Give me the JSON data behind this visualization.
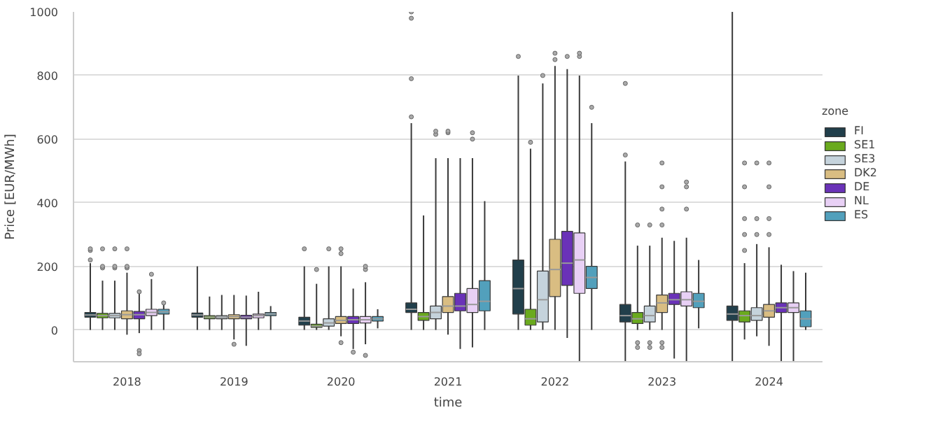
{
  "chart_data": {
    "type": "box",
    "xlabel": "time",
    "ylabel": "Price [EUR/MWh]",
    "legend_title": "zone",
    "legend": "right",
    "grid": "y",
    "categories": [
      "2018",
      "2019",
      "2020",
      "2021",
      "2022",
      "2023",
      "2024"
    ],
    "ylim": [
      -100,
      1000
    ],
    "yticks": [
      0,
      200,
      400,
      600,
      800,
      1000
    ],
    "series": [
      {
        "name": "FI",
        "color": "#213f4b",
        "boxes": [
          {
            "low": 0,
            "q1": 40,
            "median": 47,
            "q3": 55,
            "high": 210,
            "outliers": [
              220,
              250,
              255
            ]
          },
          {
            "low": 0,
            "q1": 40,
            "median": 47,
            "q3": 53,
            "high": 200
          },
          {
            "low": 0,
            "q1": 15,
            "median": 28,
            "q3": 40,
            "high": 200,
            "outliers": [
              255
            ]
          },
          {
            "low": 0,
            "q1": 55,
            "median": 65,
            "q3": 85,
            "high": 650,
            "outliers": [
              670,
              790,
              980,
              1000
            ]
          },
          {
            "low": 0,
            "q1": 50,
            "median": 130,
            "q3": 220,
            "high": 800,
            "outliers": [
              860
            ]
          },
          {
            "low": -100,
            "q1": 25,
            "median": 45,
            "q3": 80,
            "high": 530,
            "outliers": [
              550,
              775
            ]
          },
          {
            "low": -100,
            "q1": 30,
            "median": 50,
            "q3": 75,
            "high": 1000
          }
        ]
      },
      {
        "name": "SE1",
        "color": "#6aaa1e",
        "boxes": [
          {
            "low": 0,
            "q1": 38,
            "median": 45,
            "q3": 52,
            "high": 155,
            "outliers": [
              195,
              200,
              255
            ]
          },
          {
            "low": 0,
            "q1": 35,
            "median": 40,
            "q3": 45,
            "high": 105
          },
          {
            "low": 0,
            "q1": 8,
            "median": 12,
            "q3": 18,
            "high": 145,
            "outliers": [
              190
            ]
          },
          {
            "low": 0,
            "q1": 30,
            "median": 42,
            "q3": 55,
            "high": 360
          },
          {
            "low": 0,
            "q1": 15,
            "median": 35,
            "q3": 65,
            "high": 570,
            "outliers": [
              590
            ]
          },
          {
            "low": 0,
            "q1": 20,
            "median": 35,
            "q3": 55,
            "high": 265,
            "outliers": [
              330,
              -40,
              -55
            ]
          },
          {
            "low": -30,
            "q1": 25,
            "median": 45,
            "q3": 60,
            "high": 210,
            "outliers": [
              250,
              300,
              350,
              450,
              525
            ]
          }
        ]
      },
      {
        "name": "SE3",
        "color": "#c5d3dc",
        "boxes": [
          {
            "low": 0,
            "q1": 38,
            "median": 45,
            "q3": 52,
            "high": 155,
            "outliers": [
              195,
              200,
              255
            ]
          },
          {
            "low": 0,
            "q1": 35,
            "median": 40,
            "q3": 45,
            "high": 110
          },
          {
            "low": 0,
            "q1": 12,
            "median": 22,
            "q3": 35,
            "high": 200,
            "outliers": [
              255
            ]
          },
          {
            "low": 0,
            "q1": 35,
            "median": 55,
            "q3": 75,
            "high": 540,
            "outliers": [
              615,
              625
            ]
          },
          {
            "low": 0,
            "q1": 25,
            "median": 95,
            "q3": 185,
            "high": 775,
            "outliers": [
              800
            ]
          },
          {
            "low": 0,
            "q1": 25,
            "median": 45,
            "q3": 75,
            "high": 265,
            "outliers": [
              330,
              -40,
              -55
            ]
          },
          {
            "low": -20,
            "q1": 30,
            "median": 45,
            "q3": 70,
            "high": 270,
            "outliers": [
              300,
              350,
              525
            ]
          }
        ]
      },
      {
        "name": "DK2",
        "color": "#d9bd82",
        "boxes": [
          {
            "low": -15,
            "q1": 35,
            "median": 48,
            "q3": 60,
            "high": 180,
            "outliers": [
              195,
              200,
              255
            ]
          },
          {
            "low": -30,
            "q1": 35,
            "median": 42,
            "q3": 48,
            "high": 110,
            "outliers": [
              -45
            ]
          },
          {
            "low": -20,
            "q1": 20,
            "median": 30,
            "q3": 42,
            "high": 200,
            "outliers": [
              240,
              255,
              -40
            ]
          },
          {
            "low": -15,
            "q1": 55,
            "median": 75,
            "q3": 105,
            "high": 540,
            "outliers": [
              620,
              625
            ]
          },
          {
            "low": 0,
            "q1": 105,
            "median": 190,
            "q3": 285,
            "high": 830,
            "outliers": [
              850,
              870
            ]
          },
          {
            "low": 0,
            "q1": 55,
            "median": 85,
            "q3": 110,
            "high": 290,
            "outliers": [
              330,
              380,
              450,
              525,
              -40,
              -55
            ]
          },
          {
            "low": -50,
            "q1": 40,
            "median": 60,
            "q3": 80,
            "high": 260,
            "outliers": [
              300,
              350,
              450,
              525
            ]
          }
        ]
      },
      {
        "name": "DE",
        "color": "#6a32b8",
        "boxes": [
          {
            "low": -10,
            "q1": 35,
            "median": 48,
            "q3": 58,
            "high": 115,
            "outliers": [
              120,
              -65,
              -75
            ]
          },
          {
            "low": -50,
            "q1": 35,
            "median": 40,
            "q3": 46,
            "high": 108
          },
          {
            "low": -60,
            "q1": 20,
            "median": 32,
            "q3": 42,
            "high": 130,
            "outliers": [
              -70
            ]
          },
          {
            "low": -60,
            "q1": 60,
            "median": 75,
            "q3": 115,
            "high": 540
          },
          {
            "low": -25,
            "q1": 140,
            "median": 210,
            "q3": 310,
            "high": 820,
            "outliers": [
              860
            ]
          },
          {
            "low": -90,
            "q1": 80,
            "median": 95,
            "q3": 115,
            "high": 280
          },
          {
            "low": -100,
            "q1": 55,
            "median": 70,
            "q3": 85,
            "high": 205
          }
        ]
      },
      {
        "name": "NL",
        "color": "#e8d0f5",
        "boxes": [
          {
            "low": 0,
            "q1": 45,
            "median": 55,
            "q3": 65,
            "high": 160,
            "outliers": [
              175
            ]
          },
          {
            "low": 0,
            "q1": 38,
            "median": 45,
            "q3": 50,
            "high": 120
          },
          {
            "low": -45,
            "q1": 22,
            "median": 32,
            "q3": 42,
            "high": 150,
            "outliers": [
              190,
              200,
              -80
            ]
          },
          {
            "low": -55,
            "q1": 55,
            "median": 80,
            "q3": 130,
            "high": 540,
            "outliers": [
              600,
              620
            ]
          },
          {
            "low": -100,
            "q1": 115,
            "median": 220,
            "q3": 305,
            "high": 800,
            "outliers": [
              860,
              870
            ]
          },
          {
            "low": -100,
            "q1": 75,
            "median": 95,
            "q3": 120,
            "high": 290,
            "outliers": [
              380,
              450,
              465
            ]
          },
          {
            "low": -100,
            "q1": 55,
            "median": 70,
            "q3": 85,
            "high": 185
          }
        ]
      },
      {
        "name": "ES",
        "color": "#52a0bc",
        "boxes": [
          {
            "low": 0,
            "q1": 50,
            "median": 57,
            "q3": 65,
            "high": 80,
            "outliers": [
              85
            ]
          },
          {
            "low": 0,
            "q1": 45,
            "median": 50,
            "q3": 55,
            "high": 75
          },
          {
            "low": 5,
            "q1": 28,
            "median": 35,
            "q3": 42,
            "high": 65
          },
          {
            "low": 0,
            "q1": 60,
            "median": 90,
            "q3": 155,
            "high": 405
          },
          {
            "low": 0,
            "q1": 130,
            "median": 165,
            "q3": 200,
            "high": 650,
            "outliers": [
              700
            ]
          },
          {
            "low": 5,
            "q1": 70,
            "median": 90,
            "q3": 115,
            "high": 220
          },
          {
            "low": 0,
            "q1": 10,
            "median": 35,
            "q3": 60,
            "high": 180
          }
        ]
      }
    ]
  }
}
